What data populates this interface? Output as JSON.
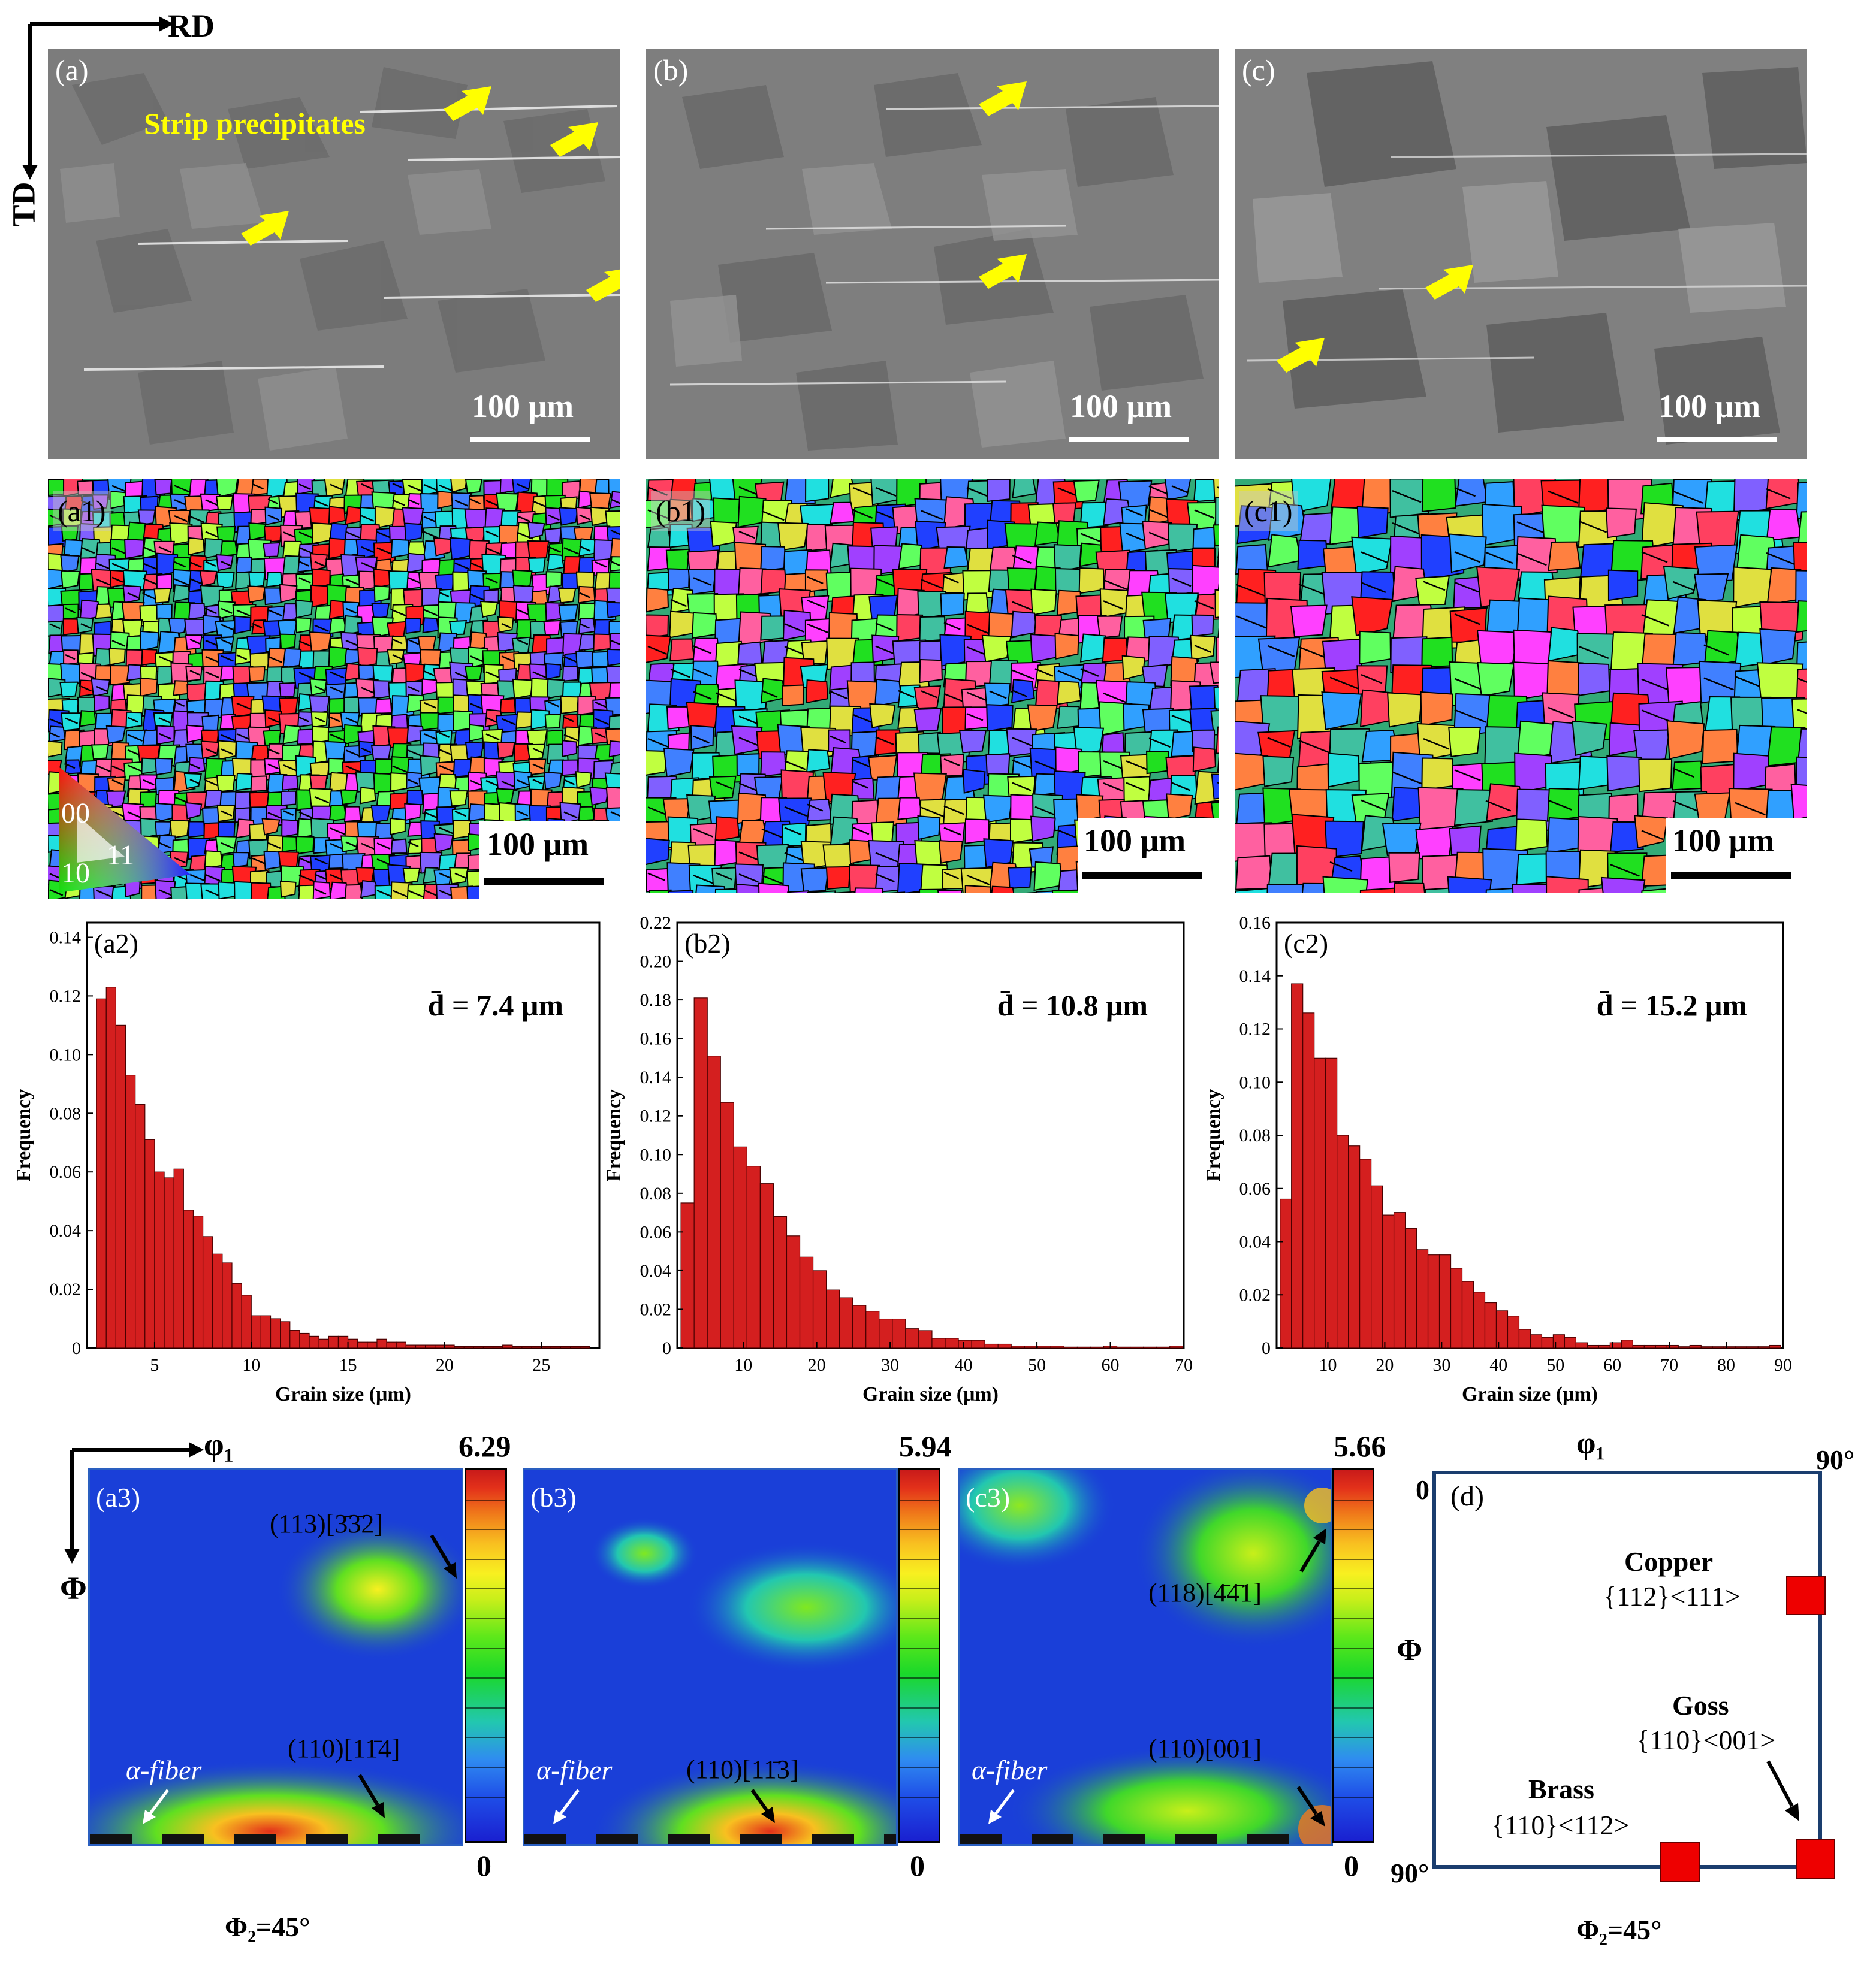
{
  "axes_top": {
    "rd": "RD",
    "td": "TD"
  },
  "sem_panels": [
    {
      "label": "(a)",
      "scale": "100 μm",
      "annotation": "Strip precipitates"
    },
    {
      "label": "(b)",
      "scale": "100 μm"
    },
    {
      "label": "(c)",
      "scale": "100 μm"
    }
  ],
  "ipf_panels": [
    {
      "label": "(a1)",
      "scale": "100 μm",
      "legend": {
        "l001": "00",
        "l101": "10",
        "l111": "11"
      }
    },
    {
      "label": "(b1)",
      "scale": "100 μm"
    },
    {
      "label": "(c1)",
      "scale": "100 μm"
    }
  ],
  "colors": {
    "bar_fill": "#d41f1f",
    "bar_stroke": "#4a0000",
    "arrow_yellow": "#ffff00",
    "odf_bg": "#1a3fd8",
    "frame_blue": "#1a3d6e",
    "marker_red": "#ee0000"
  },
  "chart_data": [
    {
      "type": "bar",
      "panel": "(a2)",
      "mean_label": "d̄ = 7.4 μm",
      "xlabel": "Grain size (μm)",
      "ylabel": "Frequency",
      "xlim": [
        1.5,
        28
      ],
      "ylim": [
        0,
        0.145
      ],
      "x_ticks": [
        5,
        10,
        15,
        20,
        25
      ],
      "y_ticks": [
        0,
        0.02,
        0.04,
        0.06,
        0.08,
        0.1,
        0.12,
        0.14
      ],
      "y_tick_labels": [
        "0",
        "0.02",
        "0.04",
        "0.06",
        "0.08",
        "0.10",
        "0.12",
        "0.14"
      ],
      "bin_width": 0.5,
      "x": [
        2.25,
        2.75,
        3.25,
        3.75,
        4.25,
        4.75,
        5.25,
        5.75,
        6.25,
        6.75,
        7.25,
        7.75,
        8.25,
        8.75,
        9.25,
        9.75,
        10.25,
        10.75,
        11.25,
        11.75,
        12.25,
        12.75,
        13.25,
        13.75,
        14.25,
        14.75,
        15.25,
        15.75,
        16.25,
        16.75,
        17.25,
        17.75,
        18.25,
        18.75,
        19.25,
        19.75,
        20.25,
        20.75,
        21.25,
        21.75,
        22.25,
        22.75,
        23.25,
        23.75,
        24.25,
        24.75,
        25.25,
        25.75,
        26.25,
        26.75,
        27.25
      ],
      "values": [
        0.119,
        0.123,
        0.11,
        0.093,
        0.083,
        0.071,
        0.06,
        0.058,
        0.061,
        0.047,
        0.045,
        0.038,
        0.032,
        0.029,
        0.022,
        0.018,
        0.011,
        0.011,
        0.01,
        0.009,
        0.006,
        0.005,
        0.004,
        0.003,
        0.004,
        0.004,
        0.003,
        0.002,
        0.002,
        0.003,
        0.002,
        0.002,
        0.001,
        0.001,
        0.001,
        0.001,
        0.001,
        0.0005,
        0.0005,
        0.0005,
        0.0005,
        0.0005,
        0.001,
        0.0005,
        0.0005,
        0.0005,
        0.0005,
        0.0005,
        0.0005,
        0.0005,
        0.0005
      ]
    },
    {
      "type": "bar",
      "panel": "(b2)",
      "mean_label": "d̄ = 10.8 μm",
      "xlabel": "Grain size (μm)",
      "ylabel": "Frequency",
      "xlim": [
        1,
        70
      ],
      "ylim": [
        0,
        0.22
      ],
      "x_ticks": [
        10,
        20,
        30,
        40,
        50,
        60,
        70
      ],
      "y_ticks": [
        0,
        0.02,
        0.04,
        0.06,
        0.08,
        0.1,
        0.12,
        0.14,
        0.16,
        0.18,
        0.2,
        0.22
      ],
      "y_tick_labels": [
        "0",
        "0.02",
        "0.04",
        "0.06",
        "0.08",
        "0.10",
        "0.12",
        "0.14",
        "0.16",
        "0.18",
        "0.20",
        "0.22"
      ],
      "bin_width": 1.8,
      "x": [
        2.4,
        4.2,
        6.0,
        7.8,
        9.6,
        11.4,
        13.2,
        15.0,
        16.8,
        18.6,
        20.4,
        22.2,
        24.0,
        25.8,
        27.6,
        29.4,
        31.2,
        33.0,
        34.8,
        36.6,
        38.4,
        40.2,
        42.0,
        43.8,
        45.6,
        47.4,
        49.2,
        51.0,
        52.8,
        54.6,
        56.4,
        58.2,
        60.0,
        61.8,
        63.6,
        65.4,
        67.2,
        69.0
      ],
      "values": [
        0.075,
        0.181,
        0.151,
        0.127,
        0.104,
        0.094,
        0.085,
        0.068,
        0.058,
        0.047,
        0.04,
        0.03,
        0.026,
        0.022,
        0.019,
        0.015,
        0.015,
        0.01,
        0.009,
        0.005,
        0.005,
        0.004,
        0.004,
        0.002,
        0.002,
        0.001,
        0.001,
        0.001,
        0.001,
        0.0005,
        0.0005,
        0.0005,
        0.001,
        0.0005,
        0.0005,
        0.0005,
        0.0005,
        0.001
      ]
    },
    {
      "type": "bar",
      "panel": "(c2)",
      "mean_label": "d̄ = 15.2 μm",
      "xlabel": "Grain size (μm)",
      "ylabel": "Frequency",
      "xlim": [
        1,
        90
      ],
      "ylim": [
        0,
        0.16
      ],
      "x_ticks": [
        10,
        20,
        30,
        40,
        50,
        60,
        70,
        80,
        90
      ],
      "y_ticks": [
        0,
        0.02,
        0.04,
        0.06,
        0.08,
        0.1,
        0.12,
        0.14,
        0.16
      ],
      "y_tick_labels": [
        "0",
        "0.02",
        "0.04",
        "0.06",
        "0.08",
        "0.10",
        "0.12",
        "0.14",
        "0.16"
      ],
      "bin_width": 2.0,
      "x": [
        2.6,
        4.6,
        6.6,
        8.6,
        10.6,
        12.6,
        14.6,
        16.6,
        18.6,
        20.6,
        22.6,
        24.6,
        26.6,
        28.6,
        30.6,
        32.6,
        34.6,
        36.6,
        38.6,
        40.6,
        42.6,
        44.6,
        46.6,
        48.6,
        50.6,
        52.6,
        54.6,
        56.6,
        58.6,
        60.6,
        62.6,
        64.6,
        66.6,
        68.6,
        70.6,
        72.6,
        74.6,
        76.6,
        78.6,
        80.6,
        82.6,
        84.6,
        86.6,
        88.6
      ],
      "values": [
        0.056,
        0.137,
        0.126,
        0.109,
        0.109,
        0.08,
        0.076,
        0.071,
        0.061,
        0.05,
        0.051,
        0.045,
        0.037,
        0.035,
        0.035,
        0.03,
        0.025,
        0.021,
        0.017,
        0.014,
        0.012,
        0.007,
        0.005,
        0.004,
        0.005,
        0.004,
        0.002,
        0.001,
        0.001,
        0.002,
        0.003,
        0.001,
        0.001,
        0.001,
        0.001,
        0.0005,
        0.001,
        0.0005,
        0.0005,
        0.0005,
        0.0005,
        0.0005,
        0.0005,
        0.001
      ]
    }
  ],
  "odf_panels": [
    {
      "label": "(a3)",
      "max": "6.29",
      "min": "0",
      "anno_top": "(113)[3̄3̄2]",
      "anno_bottom": "(110)[11̄4]",
      "alpha_label": "α-fiber"
    },
    {
      "label": "(b3)",
      "max": "5.94",
      "min": "0",
      "anno_bottom": "(110)[11̄3]",
      "alpha_label": "α-fiber"
    },
    {
      "label": "(c3)",
      "max": "5.66",
      "min": "0",
      "anno_top": "(118)[4̄4̄1]",
      "anno_bottom": "(110)[001]",
      "alpha_label": "α-fiber"
    }
  ],
  "odf_axes": {
    "phi1": "φ₁",
    "Phi": "Φ",
    "phi2": "Φ₂=45°"
  },
  "panel_d": {
    "label": "(d)",
    "phi1": "φ₁",
    "Phi": "Φ",
    "zero": "0",
    "ninety_top": "90°",
    "ninety_left": "90°",
    "phi2": "Φ₂=45°",
    "components": [
      {
        "name": "Copper",
        "index": "{112}<111>"
      },
      {
        "name": "Goss",
        "index": "{110}<001>"
      },
      {
        "name": "Brass",
        "index": "{110}<112>"
      }
    ]
  }
}
